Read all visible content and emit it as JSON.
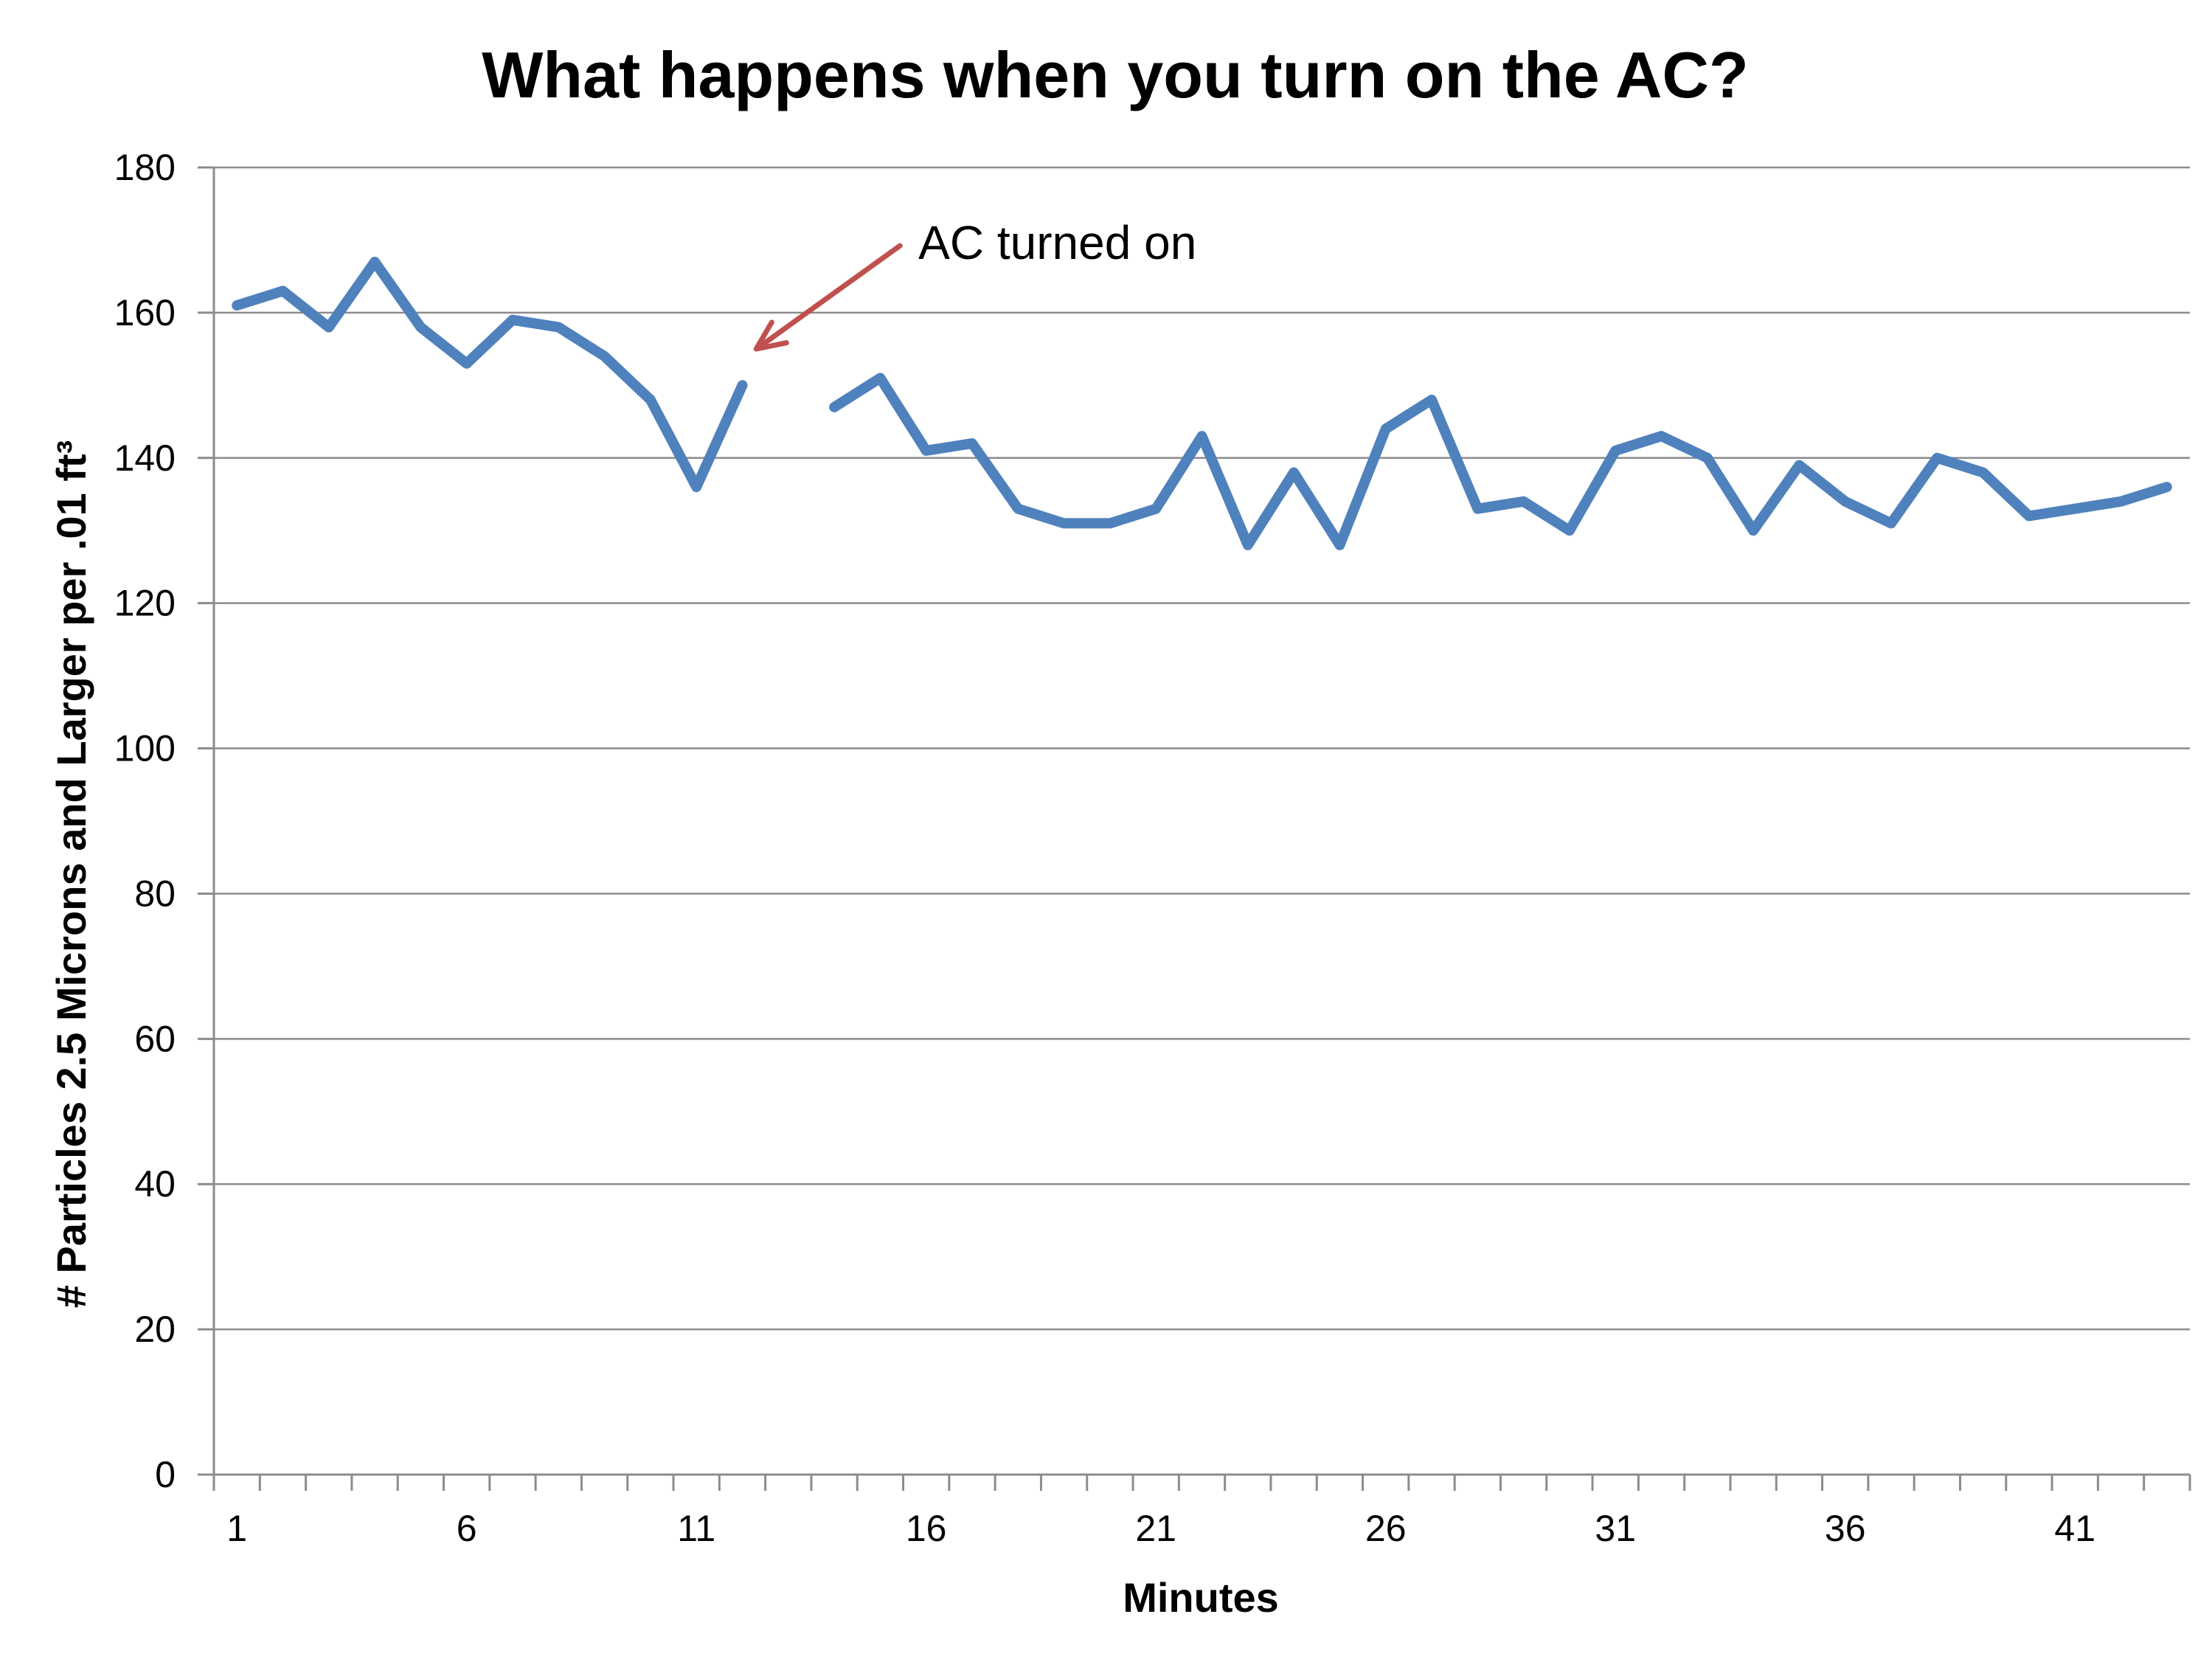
{
  "chart_data": {
    "type": "line",
    "title": "What happens when you turn on the AC?",
    "xlabel": "Minutes",
    "ylabel": "# Particles 2.5 Microns and Larger per .01 ft³",
    "ylim": [
      0,
      180
    ],
    "y_ticks": [
      0,
      20,
      40,
      60,
      80,
      100,
      120,
      140,
      160,
      180
    ],
    "x_range": [
      1,
      43
    ],
    "x_tick_labels": [
      1,
      6,
      11,
      16,
      21,
      26,
      31,
      36,
      41
    ],
    "grid": true,
    "legend": "none",
    "series": [
      {
        "color": "#4f81bd",
        "x": [
          1,
          2,
          3,
          4,
          5,
          6,
          7,
          8,
          9,
          10,
          11,
          12,
          13,
          14,
          15,
          16,
          17,
          18,
          19,
          20,
          21,
          22,
          23,
          24,
          25,
          26,
          27,
          28,
          29,
          30,
          31,
          32,
          33,
          34,
          35,
          36,
          37,
          38,
          39,
          40,
          41,
          42,
          43
        ],
        "values": [
          161,
          163,
          158,
          167,
          158,
          153,
          159,
          158,
          154,
          148,
          136,
          150,
          null,
          147,
          151,
          141,
          142,
          133,
          131,
          131,
          133,
          143,
          128,
          138,
          128,
          144,
          148,
          133,
          134,
          130,
          141,
          143,
          140,
          130,
          139,
          134,
          131,
          140,
          138,
          132,
          133,
          134,
          136
        ]
      }
    ],
    "annotations": [
      {
        "text": "AC turned on",
        "arrow_color": "#c0504d",
        "x": 12.3,
        "y": 155
      }
    ]
  }
}
